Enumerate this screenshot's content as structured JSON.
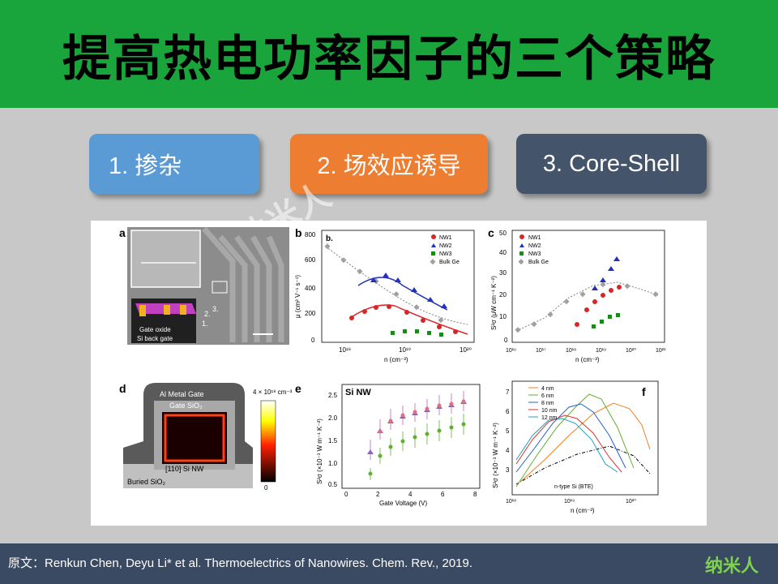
{
  "title": "提高热电功率因子的三个策略",
  "strategies": [
    {
      "label": "1. 掺杂",
      "color": "#5b9bd5"
    },
    {
      "label": "2. 场效应诱导",
      "color": "#ed7d31"
    },
    {
      "label": "3. Core-Shell",
      "color": "#44546a"
    }
  ],
  "watermark": "纳米人",
  "footer": {
    "citation": "原文：Renkun Chen, Deyu Li* et al. Thermoelectrics of Nanowires. Chem. Rev., 2019.",
    "logo": "纳米人"
  },
  "panels": {
    "a": {
      "label": "a",
      "inset1": "Gate oxide",
      "inset2": "Si back gate",
      "nums": [
        "1.",
        "2.",
        "3."
      ]
    },
    "b": {
      "label": "b",
      "inner": "b.",
      "ylabel": "μ (cm² V⁻¹ s⁻¹)",
      "xlabel": "n (cm⁻³)",
      "yticks": [
        "800",
        "600",
        "400",
        "200",
        "0"
      ],
      "xticks": [
        "10¹⁸",
        "10¹⁹",
        "10²⁰"
      ]
    },
    "c": {
      "label": "c",
      "ylabel": "S²σ (μW cm⁻¹ K⁻²)",
      "xlabel": "n (cm⁻³)",
      "yticks": [
        "50",
        "40",
        "30",
        "20",
        "10",
        "0"
      ],
      "xticks": [
        "10¹⁶",
        "10¹⁷",
        "10¹⁸",
        "10¹⁹",
        "10²⁰",
        "10²¹"
      ]
    },
    "d": {
      "label": "d",
      "gate": "Al Metal Gate",
      "oxide": "Gate SiO₂",
      "nw": "[110] Si NW",
      "buried": "Buried SiO₂",
      "cbar_top": "4 × 10¹⁹ cm⁻³",
      "cbar_bottom": "0"
    },
    "e": {
      "label": "e",
      "inner": "Si NW",
      "ylabel": "S²σ (×10⁻³ W m⁻¹ K⁻²)",
      "xlabel": "Gate Voltage (V)",
      "yticks": [
        "2.5",
        "2.0",
        "1.5",
        "1.0",
        "0.5"
      ],
      "xticks": [
        "0",
        "2",
        "4",
        "6",
        "8"
      ]
    },
    "f": {
      "label": "f",
      "ylabel": "S²σ (×10⁻³ W m⁻¹ K⁻²)",
      "xlabel": "n (cm⁻³)",
      "yticks": [
        "7",
        "6",
        "5",
        "4",
        "3"
      ],
      "xticks": [
        "10¹⁸",
        "10¹⁹",
        "10²⁰"
      ],
      "annotation": "n-type Si (BTE)"
    }
  },
  "legends": {
    "b": [
      "NW1",
      "NW2",
      "NW3",
      "Bulk Ge"
    ],
    "c": [
      "NW1",
      "NW2",
      "NW3",
      "Bulk Ge"
    ],
    "f": [
      "4 nm",
      "6 nm",
      "8 nm",
      "10 nm",
      "12 nm"
    ]
  },
  "colors": {
    "title_bar": "#1aa53c",
    "nw1": "#d62728",
    "nw2": "#2030c0",
    "nw3": "#1a8a1a",
    "bulk": "#808080",
    "f4": "#f08020",
    "f6": "#60b030",
    "f8": "#2060d0",
    "f10": "#e03030",
    "f12": "#20a0c0"
  }
}
